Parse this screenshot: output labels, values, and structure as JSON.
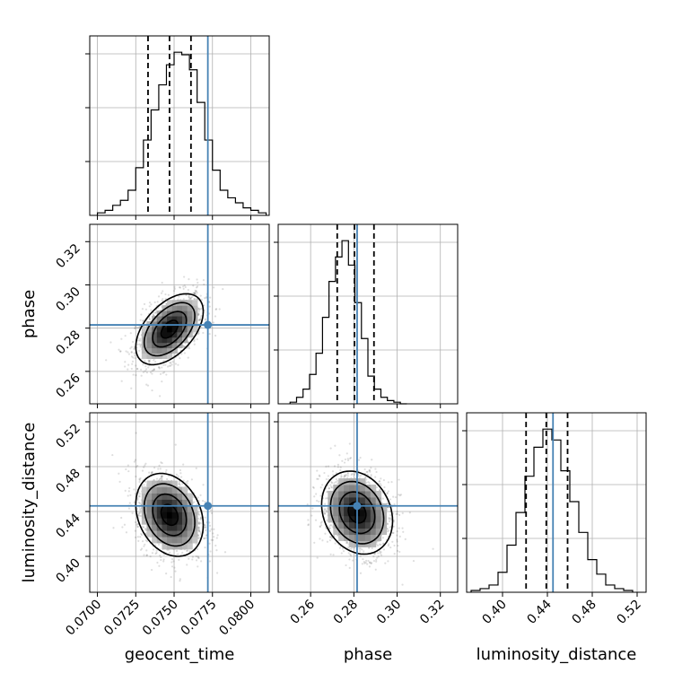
{
  "chart_data": {
    "type": "corner",
    "parameters": [
      "geocent_time",
      "phase",
      "luminosity_distance"
    ],
    "truths": [
      0.0772,
      0.2815,
      0.445
    ],
    "truth_color": "#4682b4",
    "grid": true,
    "ranges": [
      [
        0.0695,
        0.0812
      ],
      [
        0.245,
        0.328
      ],
      [
        0.368,
        0.528
      ]
    ],
    "tick_labels": [
      [
        "0.0700",
        "0.0725",
        "0.0750",
        "0.0775",
        "0.0800"
      ],
      [
        "0.26",
        "0.28",
        "0.30",
        "0.32"
      ],
      [
        "0.40",
        "0.44",
        "0.48",
        "0.52"
      ]
    ],
    "tick_values": [
      [
        0.07,
        0.0725,
        0.075,
        0.0775,
        0.08
      ],
      [
        0.26,
        0.28,
        0.3,
        0.32
      ],
      [
        0.4,
        0.44,
        0.48,
        0.52
      ]
    ],
    "quantiles": [
      [
        0.0733,
        0.0747,
        0.0761
      ],
      [
        0.2723,
        0.2803,
        0.2893
      ],
      [
        0.421,
        0.439,
        0.458
      ]
    ],
    "marginals": [
      {
        "param": "geocent_time",
        "bin_start": 0.07,
        "bin_width": 0.0005,
        "counts": [
          1,
          2,
          4,
          6,
          10,
          19,
          30,
          42,
          52,
          60,
          65,
          64,
          58,
          45,
          30,
          18,
          10,
          7,
          5,
          3,
          2,
          1
        ]
      },
      {
        "param": "phase",
        "bin_start": 0.2505,
        "bin_width": 0.003,
        "counts": [
          1,
          4,
          9,
          18,
          31,
          53,
          75,
          90,
          100,
          85,
          62,
          40,
          17,
          9,
          4,
          2,
          1,
          0
        ]
      },
      {
        "param": "luminosity_distance",
        "bin_start": 0.372,
        "bin_width": 0.008,
        "counts": [
          1,
          2,
          4,
          11,
          26,
          44,
          64,
          80,
          90,
          84,
          67,
          50,
          33,
          18,
          10,
          4,
          2,
          1
        ]
      }
    ],
    "joint_2d": [
      {
        "x": "geocent_time",
        "y": "phase",
        "center": [
          0.0747,
          0.2795
        ],
        "sigma": [
          0.0011,
          0.0082
        ],
        "rho": 0.5
      },
      {
        "x": "geocent_time",
        "y": "luminosity_distance",
        "center": [
          0.0747,
          0.437
        ],
        "sigma": [
          0.0011,
          0.0185
        ],
        "rho": -0.25
      },
      {
        "x": "phase",
        "y": "luminosity_distance",
        "center": [
          0.2815,
          0.439
        ],
        "sigma": [
          0.0082,
          0.0185
        ],
        "rho": -0.2
      }
    ]
  }
}
